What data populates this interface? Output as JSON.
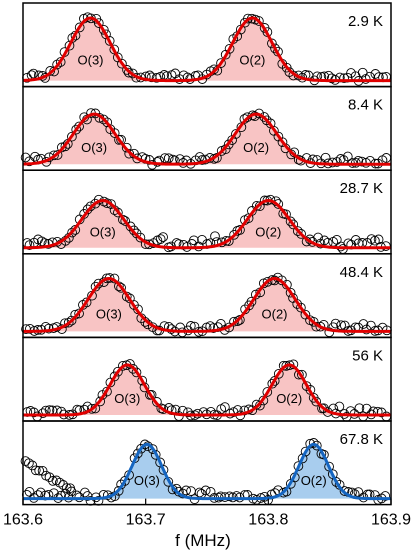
{
  "chart_data": {
    "type": "line",
    "xlabel": "f (MHz)",
    "xlim": [
      163.6,
      163.9
    ],
    "x_ticks": [
      "163.6",
      "163.7",
      "163.8",
      "163.9"
    ],
    "x_tick_values": [
      163.6,
      163.7,
      163.8,
      163.9
    ],
    "marker": "open-circle",
    "panels": [
      {
        "temperature": "2.9 K",
        "fill_color": "#f8c4c4",
        "line_color": "#e00000",
        "peaks": [
          {
            "label": "O(3)",
            "center": 163.655,
            "width": 0.016,
            "height": 0.9
          },
          {
            "label": "O(2)",
            "center": 163.787,
            "width": 0.016,
            "height": 0.9
          }
        ],
        "baseline_noise": 0.05
      },
      {
        "temperature": "8.4 K",
        "fill_color": "#f8c4c4",
        "line_color": "#e00000",
        "peaks": [
          {
            "label": "O(3)",
            "center": 163.658,
            "width": 0.017,
            "height": 0.72
          },
          {
            "label": "O(2)",
            "center": 163.79,
            "width": 0.017,
            "height": 0.72
          }
        ],
        "baseline_noise": 0.05
      },
      {
        "temperature": "28.7 K",
        "fill_color": "#f8c4c4",
        "line_color": "#e00000",
        "peaks": [
          {
            "label": "O(3)",
            "center": 163.665,
            "width": 0.017,
            "height": 0.68
          },
          {
            "label": "O(2)",
            "center": 163.8,
            "width": 0.017,
            "height": 0.68
          }
        ],
        "baseline_noise": 0.07
      },
      {
        "temperature": "48.4 K",
        "fill_color": "#f8c4c4",
        "line_color": "#e00000",
        "peaks": [
          {
            "label": "O(3)",
            "center": 163.67,
            "width": 0.017,
            "height": 0.76
          },
          {
            "label": "O(2)",
            "center": 163.805,
            "width": 0.017,
            "height": 0.76
          }
        ],
        "baseline_noise": 0.05
      },
      {
        "temperature": "56 K",
        "fill_color": "#f8c4c4",
        "line_color": "#e00000",
        "peaks": [
          {
            "label": "O(3)",
            "center": 163.685,
            "width": 0.014,
            "height": 0.72
          },
          {
            "label": "O(2)",
            "center": 163.817,
            "width": 0.014,
            "height": 0.72
          }
        ],
        "baseline_noise": 0.05
      },
      {
        "temperature": "67.8 K",
        "fill_color": "#a8cdee",
        "line_color": "#1565c0",
        "peaks": [
          {
            "label": "O(3)",
            "center": 163.701,
            "width": 0.012,
            "height": 0.78
          },
          {
            "label": "O(2)",
            "center": 163.837,
            "width": 0.012,
            "height": 0.78
          }
        ],
        "baseline_noise": 0.05
      }
    ]
  }
}
